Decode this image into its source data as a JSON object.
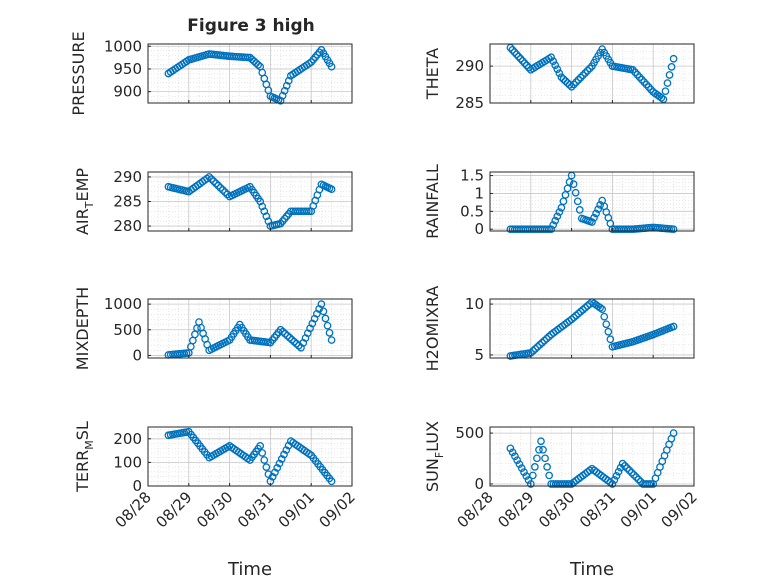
{
  "figure": {
    "title": "Figure 3 high",
    "xlabel": "Time",
    "x_tick_labels": [
      "08/28",
      "08/29",
      "08/30",
      "08/31",
      "09/01",
      "09/02"
    ],
    "marker_color": "#0072BD"
  },
  "chart_data": [
    {
      "type": "scatter",
      "title": "Figure 3 high",
      "ylabel_main": "PRESSURE",
      "ylabel_sub": "",
      "ylabel_tail": "",
      "ylim": [
        875,
        1005
      ],
      "yticks": [
        900,
        950,
        1000
      ],
      "ytick_labels": [
        "900",
        "950",
        "1000"
      ],
      "xlim": [
        "08/28",
        "09/02"
      ],
      "grid": true,
      "x": [
        "08/28 12:00",
        "08/29 00:00",
        "08/29 12:00",
        "08/30 00:00",
        "08/30 12:00",
        "08/30 18:00",
        "08/31 00:00",
        "08/31 06:00",
        "08/31 12:00",
        "09/01 00:00",
        "09/01 06:00",
        "09/01 12:00"
      ],
      "y": [
        940,
        970,
        983,
        978,
        975,
        955,
        890,
        880,
        935,
        965,
        992,
        955
      ]
    },
    {
      "type": "scatter",
      "title": "",
      "ylabel_main": "THETA",
      "ylabel_sub": "",
      "ylabel_tail": "",
      "ylim": [
        285,
        293
      ],
      "yticks": [
        285,
        290
      ],
      "ytick_labels": [
        "285",
        "290"
      ],
      "xlim": [
        "08/28",
        "09/02"
      ],
      "grid": true,
      "x": [
        "08/28 12:00",
        "08/28 18:00",
        "08/29 00:00",
        "08/29 12:00",
        "08/29 18:00",
        "08/30 00:00",
        "08/30 12:00",
        "08/30 18:00",
        "08/31 00:00",
        "08/31 12:00",
        "09/01 00:00",
        "09/01 06:00",
        "09/01 12:00"
      ],
      "y": [
        292.5,
        291,
        289.5,
        291.2,
        288.5,
        287.2,
        290,
        292.3,
        290,
        289.5,
        286.5,
        285.5,
        291
      ]
    },
    {
      "type": "scatter",
      "title": "",
      "ylabel_main": "AIR",
      "ylabel_sub": "T",
      "ylabel_tail": "EMP",
      "ylim": [
        279,
        291
      ],
      "yticks": [
        280,
        285,
        290
      ],
      "ytick_labels": [
        "280",
        "285",
        "290"
      ],
      "xlim": [
        "08/28",
        "09/02"
      ],
      "grid": true,
      "x": [
        "08/28 12:00",
        "08/29 00:00",
        "08/29 12:00",
        "08/30 00:00",
        "08/30 12:00",
        "08/30 18:00",
        "08/31 00:00",
        "08/31 06:00",
        "08/31 12:00",
        "09/01 00:00",
        "09/01 06:00",
        "09/01 12:00"
      ],
      "y": [
        288,
        287,
        290,
        286,
        288,
        285,
        280,
        280.5,
        283,
        283,
        288.5,
        287.5
      ]
    },
    {
      "type": "scatter",
      "title": "",
      "ylabel_main": "RAINFALL",
      "ylabel_sub": "",
      "ylabel_tail": "",
      "ylim": [
        -0.05,
        1.6
      ],
      "yticks": [
        0,
        0.5,
        1,
        1.5
      ],
      "ytick_labels": [
        "0",
        "0.5",
        "1",
        "1.5"
      ],
      "xlim": [
        "08/28",
        "09/02"
      ],
      "grid": true,
      "x": [
        "08/28 12:00",
        "08/29 12:00",
        "08/29 18:00",
        "08/30 00:00",
        "08/30 06:00",
        "08/30 12:00",
        "08/30 18:00",
        "08/31 00:00",
        "08/31 12:00",
        "09/01 00:00",
        "09/01 12:00"
      ],
      "y": [
        0,
        0,
        0.6,
        1.5,
        0.3,
        0.2,
        0.8,
        0,
        0,
        0.05,
        0
      ]
    },
    {
      "type": "scatter",
      "title": "",
      "ylabel_main": "MIXDEPTH",
      "ylabel_sub": "",
      "ylabel_tail": "",
      "ylim": [
        -50,
        1100
      ],
      "yticks": [
        0,
        500,
        1000
      ],
      "ytick_labels": [
        "0",
        "500",
        "1000"
      ],
      "xlim": [
        "08/28",
        "09/02"
      ],
      "grid": true,
      "x": [
        "08/28 12:00",
        "08/29 00:00",
        "08/29 06:00",
        "08/29 12:00",
        "08/30 00:00",
        "08/30 06:00",
        "08/30 12:00",
        "08/31 00:00",
        "08/31 06:00",
        "08/31 18:00",
        "09/01 06:00",
        "09/01 12:00"
      ],
      "y": [
        10,
        50,
        650,
        100,
        300,
        600,
        300,
        250,
        500,
        150,
        1000,
        300
      ]
    },
    {
      "type": "scatter",
      "title": "",
      "ylabel_main": "H2OMIXRA",
      "ylabel_sub": "",
      "ylabel_tail": "",
      "ylim": [
        4.7,
        10.5
      ],
      "yticks": [
        5,
        10
      ],
      "ytick_labels": [
        "5",
        "10"
      ],
      "xlim": [
        "08/28",
        "09/02"
      ],
      "grid": true,
      "x": [
        "08/28 12:00",
        "08/29 00:00",
        "08/29 12:00",
        "08/30 00:00",
        "08/30 12:00",
        "08/30 18:00",
        "08/31 00:00",
        "08/31 12:00",
        "09/01 00:00",
        "09/01 12:00"
      ],
      "y": [
        4.9,
        5.2,
        7,
        8.5,
        10.2,
        9.5,
        5.8,
        6.3,
        7,
        7.8
      ]
    },
    {
      "type": "scatter",
      "title": "",
      "ylabel_main": "TERR",
      "ylabel_sub": "M",
      "ylabel_tail": "SL",
      "ylim": [
        0,
        250
      ],
      "yticks": [
        0,
        100,
        200
      ],
      "ytick_labels": [
        "0",
        "100",
        "200"
      ],
      "xlim": [
        "08/28",
        "09/02"
      ],
      "grid": true,
      "x": [
        "08/28 12:00",
        "08/29 00:00",
        "08/29 12:00",
        "08/30 00:00",
        "08/30 12:00",
        "08/30 18:00",
        "08/31 00:00",
        "08/31 12:00",
        "09/01 00:00",
        "09/01 12:00"
      ],
      "y": [
        215,
        230,
        120,
        170,
        110,
        170,
        20,
        190,
        130,
        20
      ]
    },
    {
      "type": "scatter",
      "title": "",
      "ylabel_main": "SUN",
      "ylabel_sub": "F",
      "ylabel_tail": "LUX",
      "ylim": [
        -20,
        560
      ],
      "yticks": [
        0,
        500
      ],
      "ytick_labels": [
        "0",
        "500"
      ],
      "xlim": [
        "08/28",
        "09/02"
      ],
      "grid": true,
      "x": [
        "08/28 12:00",
        "08/29 00:00",
        "08/29 06:00",
        "08/29 12:00",
        "08/30 00:00",
        "08/30 12:00",
        "08/31 00:00",
        "08/31 06:00",
        "08/31 18:00",
        "09/01 00:00",
        "09/01 12:00"
      ],
      "y": [
        350,
        0,
        420,
        0,
        0,
        150,
        0,
        200,
        0,
        0,
        500
      ]
    }
  ]
}
